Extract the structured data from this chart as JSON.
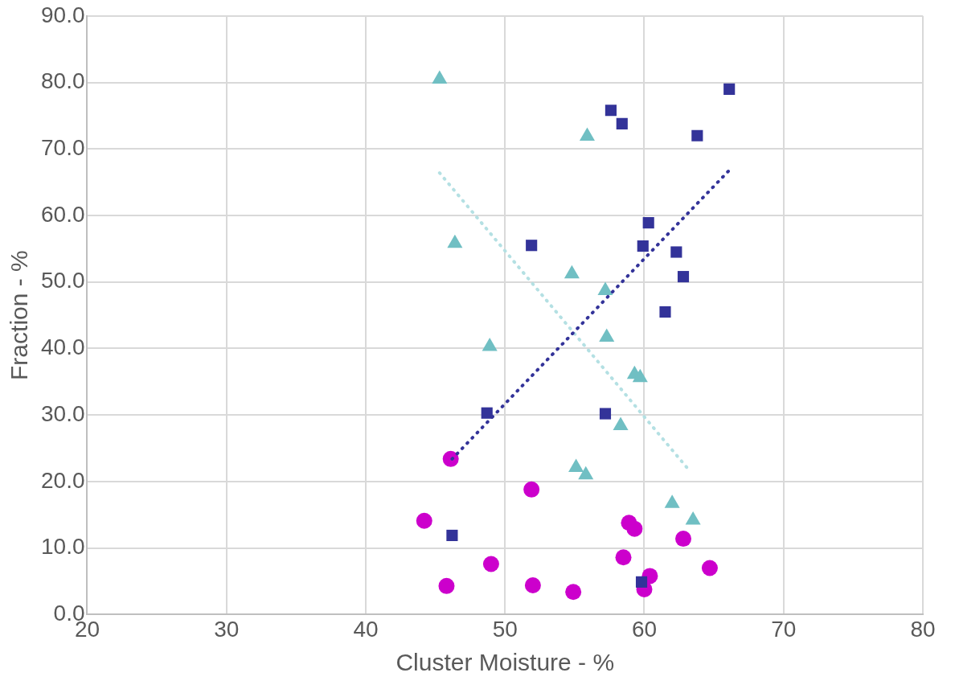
{
  "chart_data": {
    "type": "scatter",
    "xlabel": "Cluster Moisture - %",
    "ylabel": "Fraction - %",
    "xlim": [
      20,
      80
    ],
    "xticks": [
      20,
      30,
      40,
      50,
      60,
      70,
      80
    ],
    "ylim": [
      0,
      90
    ],
    "yticks": [
      {
        "value": 0,
        "label": "0.0"
      },
      {
        "value": 10,
        "label": "10.0"
      },
      {
        "value": 20,
        "label": "20.0"
      },
      {
        "value": 30,
        "label": "30.0"
      },
      {
        "value": 40,
        "label": "40.0"
      },
      {
        "value": 50,
        "label": "50.0"
      },
      {
        "value": 60,
        "label": "60.0"
      },
      {
        "value": 70,
        "label": "70.0"
      },
      {
        "value": 80,
        "label": "80.0"
      },
      {
        "value": 90,
        "label": "90.0"
      }
    ],
    "grid": true,
    "legend": false,
    "series": [
      {
        "type": "scatter",
        "marker": "square",
        "color": "#333399",
        "x": [
          48.7,
          51.9,
          57.2,
          57.6,
          58.4,
          59.9,
          60.3,
          61.5,
          62.3,
          62.8,
          63.8,
          66.1,
          46.2,
          59.8
        ],
        "values": [
          30.3,
          55.5,
          30.2,
          75.8,
          73.8,
          55.4,
          58.9,
          45.5,
          54.5,
          50.8,
          72.0,
          79.0,
          11.9,
          4.9
        ]
      },
      {
        "type": "scatter",
        "marker": "triangle",
        "color": "#70bfc3",
        "x": [
          45.3,
          55.9,
          46.4,
          54.8,
          57.2,
          57.3,
          48.9,
          59.3,
          59.7,
          58.3,
          55.1,
          55.8,
          62.0,
          63.5
        ],
        "values": [
          80.5,
          71.9,
          55.8,
          51.2,
          48.7,
          41.7,
          40.3,
          36.1,
          35.6,
          28.4,
          22.1,
          21.0,
          16.7,
          14.2
        ]
      },
      {
        "type": "scatter",
        "marker": "circle",
        "color": "#cc00cc",
        "x": [
          46.1,
          51.9,
          44.2,
          58.9,
          59.3,
          62.8,
          58.5,
          64.7,
          49.0,
          45.8,
          52.0,
          54.9,
          60.4,
          60.0
        ],
        "values": [
          23.4,
          18.8,
          14.1,
          13.8,
          12.9,
          11.4,
          8.6,
          7.0,
          7.6,
          4.3,
          4.4,
          3.4,
          5.8,
          3.8
        ]
      },
      {
        "type": "line",
        "marker": "none",
        "line_style": "dotted",
        "color": "#333399",
        "x": [
          46.2,
          66.1
        ],
        "values": [
          23.4,
          66.8
        ]
      },
      {
        "type": "line",
        "marker": "none",
        "line_style": "dotted",
        "color": "#b4e0e3",
        "x": [
          45.3,
          63.3
        ],
        "values": [
          66.4,
          21.5
        ]
      }
    ]
  }
}
